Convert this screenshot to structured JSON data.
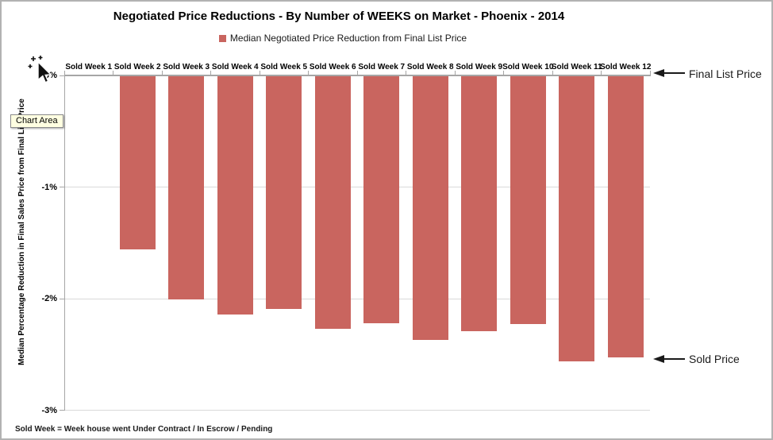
{
  "chart_data": {
    "type": "bar",
    "title": "Negotiated Price Reductions - By Number of WEEKS on Market - Phoenix - 2014",
    "legend_label": "Median Negotiated Price Reduction from Final List Price",
    "legend_position": "top",
    "categories": [
      "Sold Week 1",
      "Sold Week 2",
      "Sold Week 3",
      "Sold Week 4",
      "Sold Week 5",
      "Sold Week 6",
      "Sold Week 7",
      "Sold Week 8",
      "Sold Week 9",
      "Sold Week 10",
      "Sold Week 11",
      "Sold Week 12"
    ],
    "values": [
      0,
      -1.56,
      -2.01,
      -2.14,
      -2.09,
      -2.27,
      -2.22,
      -2.37,
      -2.29,
      -2.23,
      -2.56,
      -2.53
    ],
    "value_unit": "percent",
    "xlabel": "",
    "ylabel": "Median Percentage Reduction in Final Sales Price from Final List Price",
    "ylim": [
      -3,
      0
    ],
    "yticks": [
      "0%",
      "-1%",
      "-2%",
      "-3%"
    ],
    "ytick_values": [
      0,
      -1,
      -2,
      -3
    ],
    "grid": true
  },
  "annotations": {
    "final_list_price": "Final List Price",
    "sold_price": "Sold Price"
  },
  "tooltip": "Chart Area",
  "footnote": "Sold Week = Week house went Under Contract / In Escrow / Pending",
  "colors": {
    "bar": "#c9655f",
    "grid": "#d9d9d9",
    "axis": "#a6a6a6",
    "tooltip_bg": "#ffffe1",
    "arrow": "#1a1a1a"
  }
}
